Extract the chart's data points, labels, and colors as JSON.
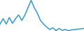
{
  "values": [
    5.0,
    6.5,
    5.0,
    6.8,
    5.2,
    6.5,
    7.5,
    6.0,
    7.5,
    9.5,
    11.5,
    9.5,
    8.0,
    6.0,
    5.0,
    4.2,
    3.5,
    4.0,
    3.2,
    3.8,
    3.3,
    3.5,
    3.2,
    3.4,
    3.5,
    3.6,
    3.7,
    3.8
  ],
  "line_color": "#3399cc",
  "linewidth": 1.1,
  "background_color": "#ffffff"
}
